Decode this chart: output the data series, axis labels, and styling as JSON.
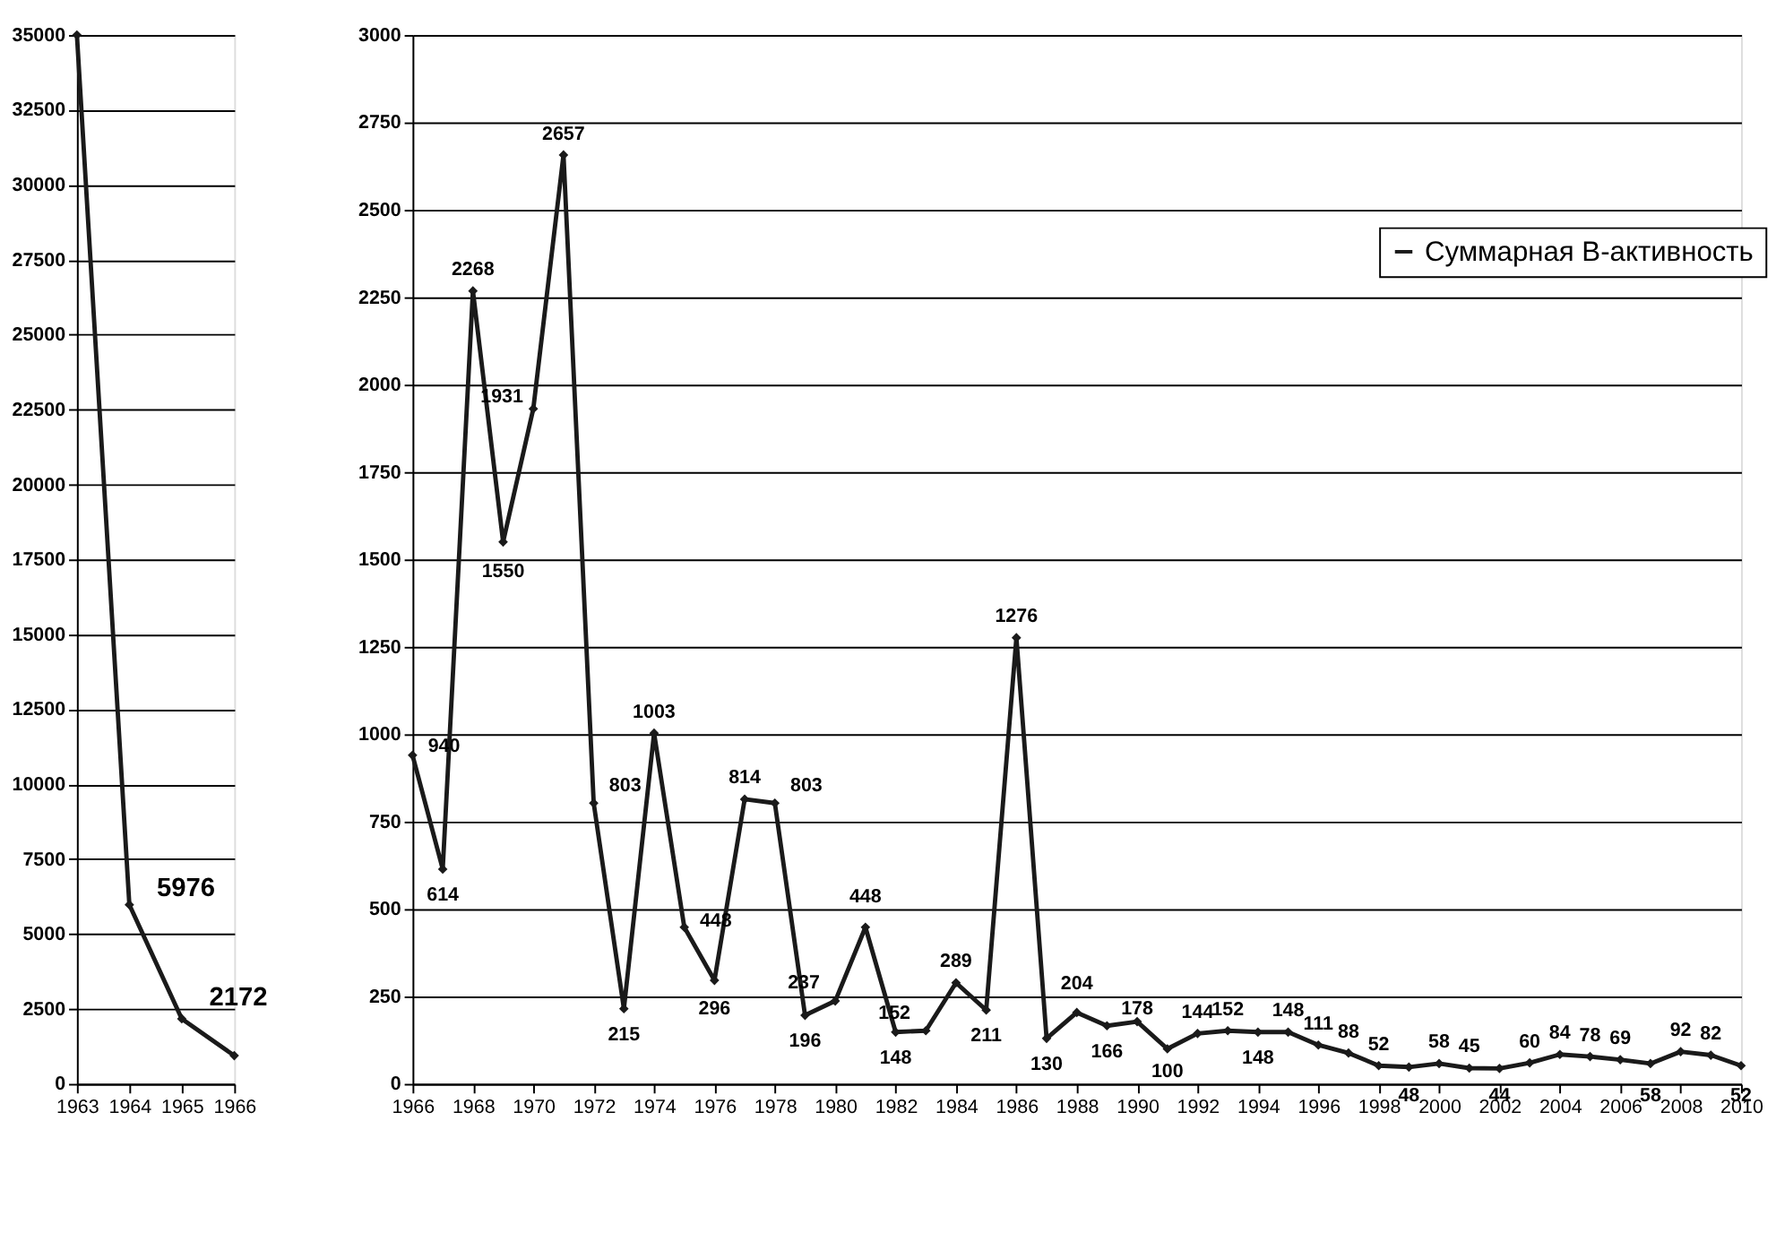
{
  "chart_data": [
    {
      "type": "line",
      "x": [
        1963,
        1964,
        1965,
        1966
      ],
      "series": [
        {
          "color": "#1a1a1a",
          "values": [
            35000,
            5976,
            2172,
            940
          ],
          "value_labels": [
            null,
            "5976",
            "2172",
            null
          ]
        }
      ],
      "xlim": [
        1963,
        1966
      ],
      "xticks": [
        1963,
        1964,
        1965,
        1966
      ],
      "ylim": [
        0,
        35000
      ],
      "yticks": [
        0,
        2500,
        5000,
        7500,
        10000,
        12500,
        15000,
        17500,
        20000,
        22500,
        25000,
        27500,
        30000,
        32500,
        35000
      ],
      "grid": "y",
      "marker": "diamond",
      "line_style": "solid",
      "legend": false
    },
    {
      "type": "line",
      "x": [
        1966,
        1967,
        1968,
        1969,
        1970,
        1971,
        1972,
        1973,
        1974,
        1975,
        1976,
        1977,
        1978,
        1979,
        1980,
        1981,
        1982,
        1983,
        1984,
        1985,
        1986,
        1987,
        1988,
        1989,
        1990,
        1991,
        1992,
        1993,
        1994,
        1995,
        1996,
        1997,
        1998,
        1999,
        2000,
        2001,
        2002,
        2003,
        2004,
        2005,
        2006,
        2007,
        2008,
        2009,
        2010
      ],
      "series": [
        {
          "name": "Суммарная В-активность",
          "color": "#1a1a1a",
          "values": [
            940,
            614,
            2268,
            1550,
            1931,
            2657,
            803,
            215,
            1003,
            448,
            296,
            814,
            803,
            196,
            237,
            448,
            148,
            152,
            289,
            211,
            1276,
            130,
            204,
            166,
            178,
            100,
            144,
            152,
            148,
            148,
            111,
            88,
            52,
            48,
            58,
            45,
            44,
            60,
            84,
            78,
            69,
            58,
            92,
            82,
            52
          ]
        }
      ],
      "xlim": [
        1966,
        2010
      ],
      "xticks": [
        1966,
        1968,
        1970,
        1972,
        1974,
        1976,
        1978,
        1980,
        1982,
        1984,
        1986,
        1988,
        1990,
        1992,
        1994,
        1996,
        1998,
        2000,
        2002,
        2004,
        2006,
        2008,
        2010
      ],
      "ylim": [
        0,
        3000
      ],
      "yticks": [
        0,
        250,
        500,
        750,
        1000,
        1250,
        1500,
        1750,
        2000,
        2250,
        2500,
        2750,
        3000
      ],
      "grid": "y",
      "marker": "diamond",
      "line_style": "solid",
      "legend": "top right",
      "data_labels": true
    }
  ]
}
